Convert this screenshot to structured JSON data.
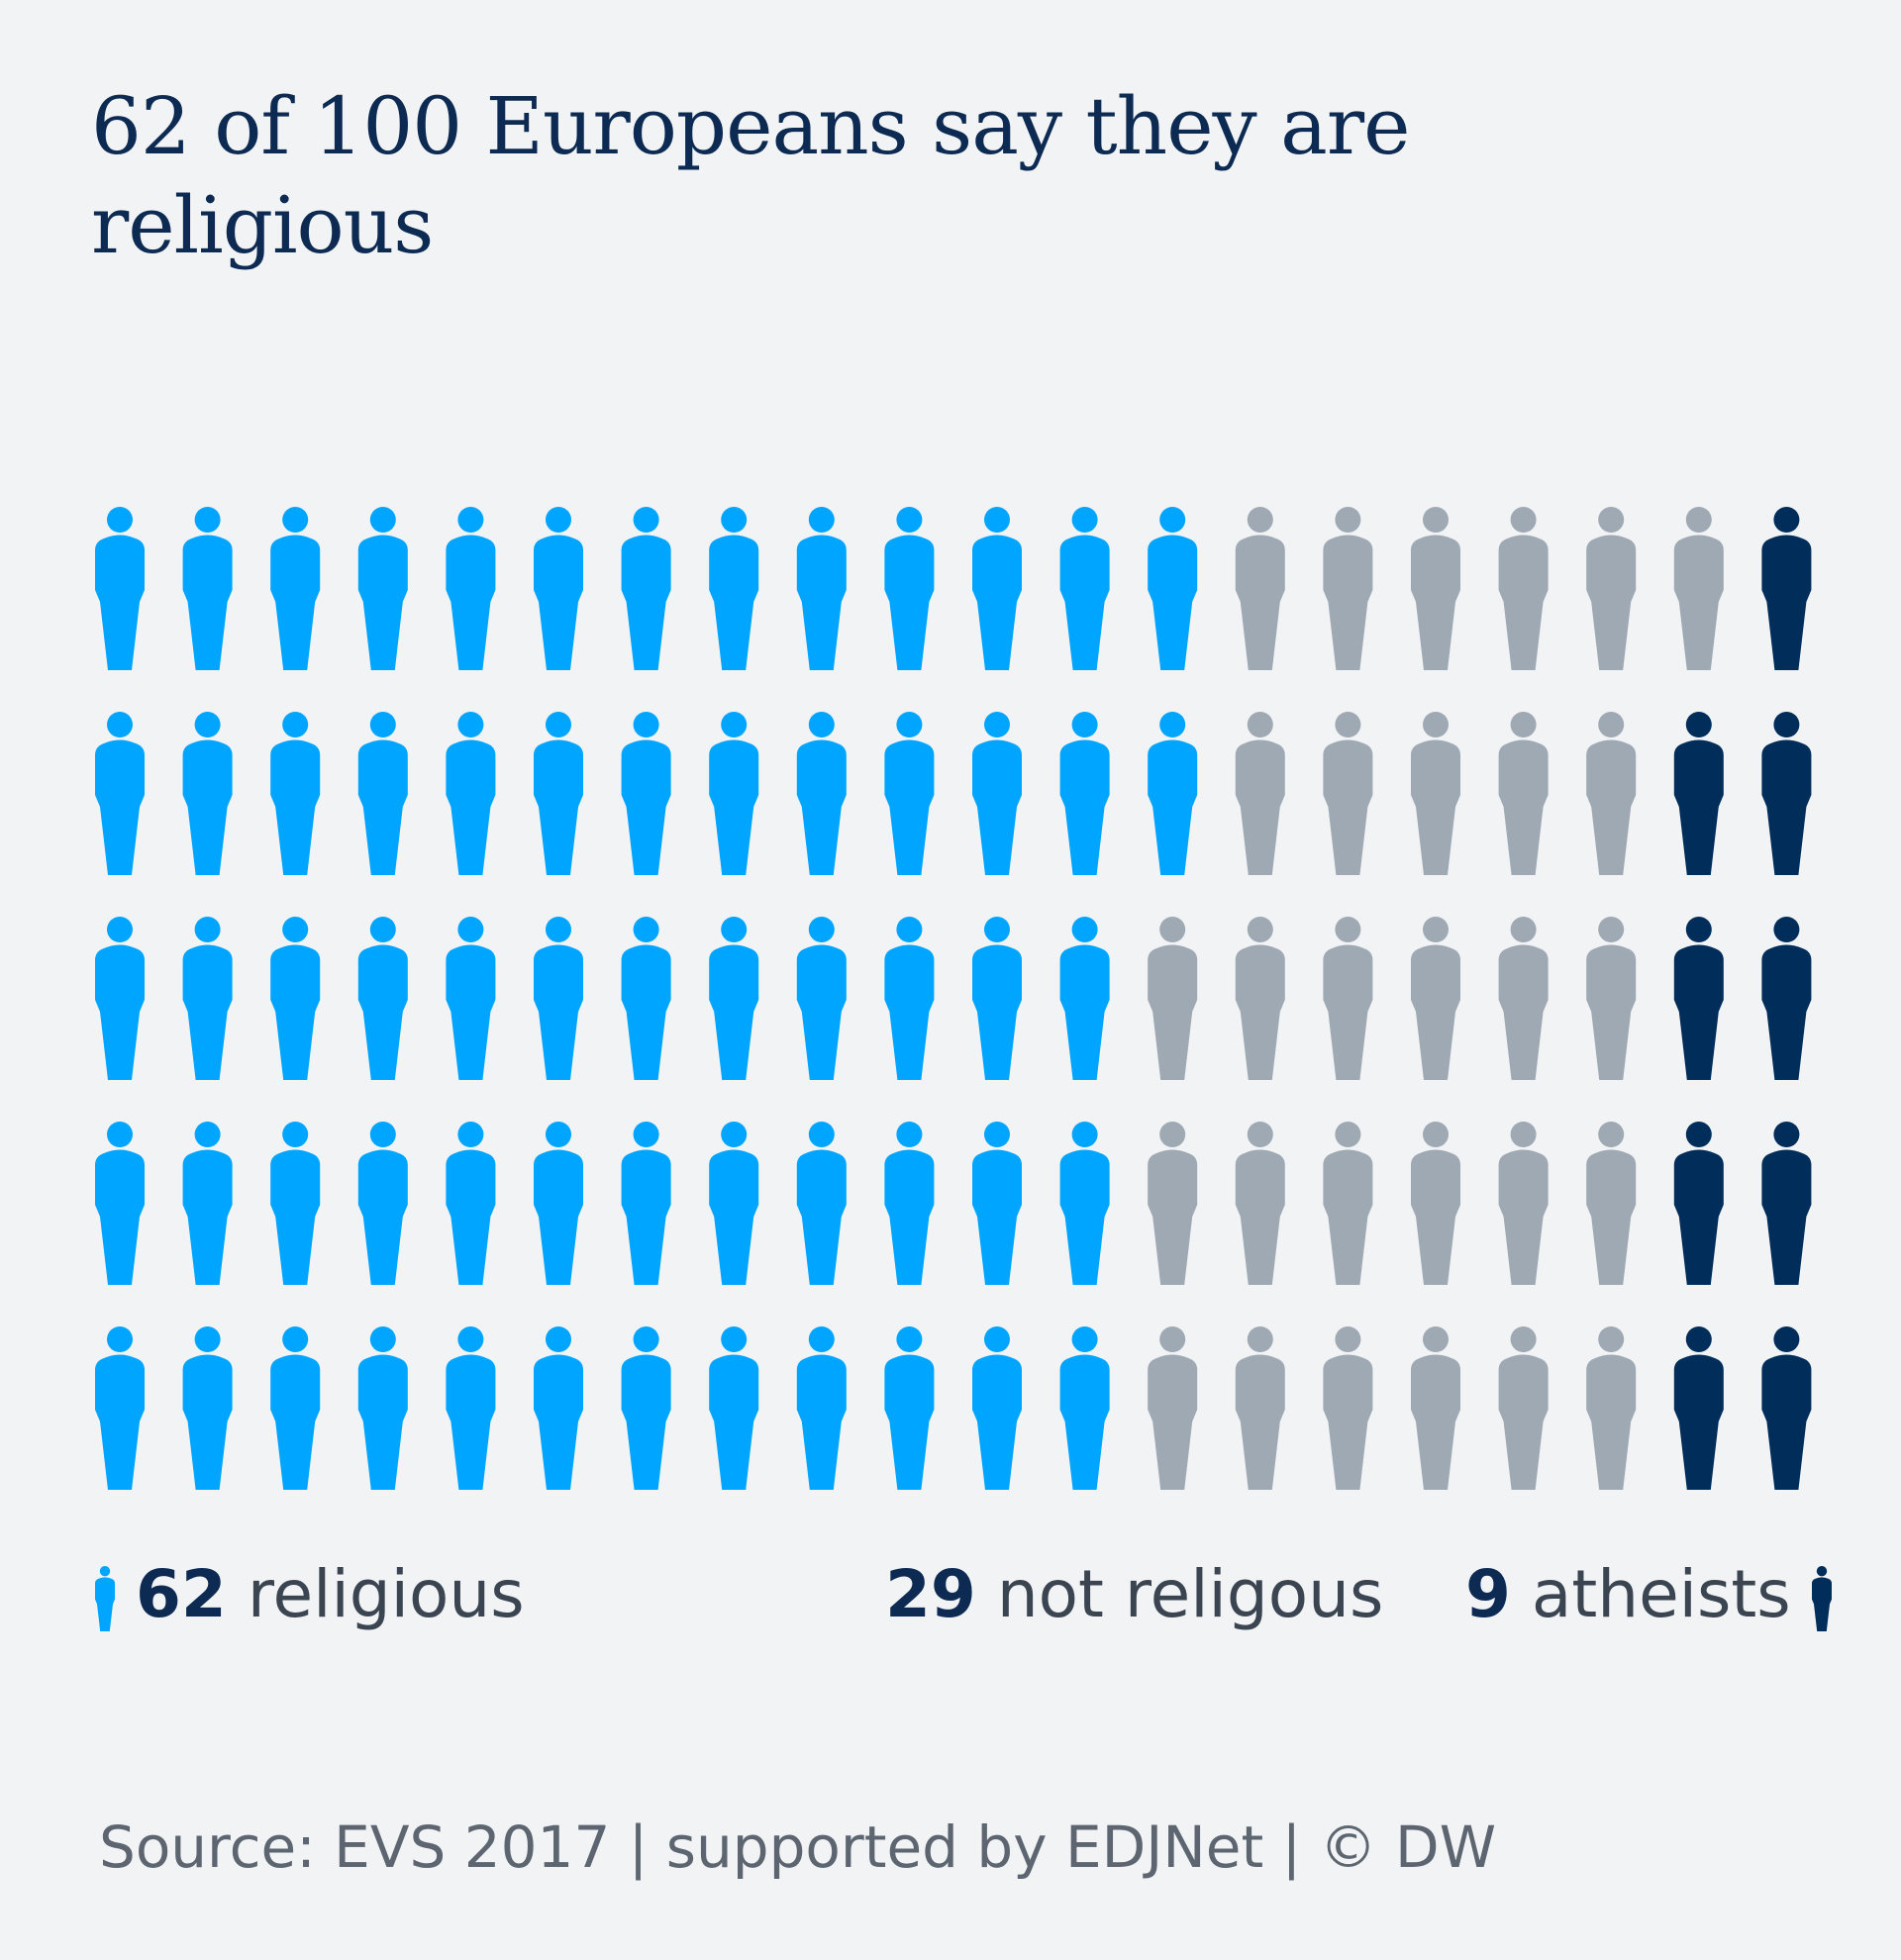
{
  "title": "62 of 100 Europeans say they are religious",
  "colors": {
    "background": "#f1f3f5",
    "religious": "#00a5ff",
    "not_religious": "#9ea9b3",
    "atheists": "#002d5a",
    "title": "#0c2a52"
  },
  "icons": {
    "person": "person-icon"
  },
  "chart_data": {
    "type": "pictogram",
    "title": "62 of 100 Europeans say they are religious",
    "total": 100,
    "rows": 5,
    "columns": 20,
    "row_counts": [
      {
        "religious": 13,
        "not_religious": 6,
        "atheists": 1
      },
      {
        "religious": 13,
        "not_religious": 5,
        "atheists": 2
      },
      {
        "religious": 12,
        "not_religious": 6,
        "atheists": 2
      },
      {
        "religious": 12,
        "not_religious": 6,
        "atheists": 2
      },
      {
        "religious": 12,
        "not_religious": 6,
        "atheists": 2
      }
    ],
    "series": [
      {
        "name": "religious",
        "value": 62,
        "color": "#00a5ff"
      },
      {
        "name": "not religous",
        "value": 29,
        "color": "#9ea9b3"
      },
      {
        "name": "atheists",
        "value": 9,
        "color": "#002d5a"
      }
    ]
  },
  "legend": {
    "religious": {
      "value": "62",
      "label": "religious"
    },
    "not_religious": {
      "value": "29",
      "label": "not religous"
    },
    "atheists": {
      "value": "9",
      "label": "atheists"
    }
  },
  "footer": {
    "source": "Source: EVS 2017 | supported by EDJNet | © DW"
  }
}
